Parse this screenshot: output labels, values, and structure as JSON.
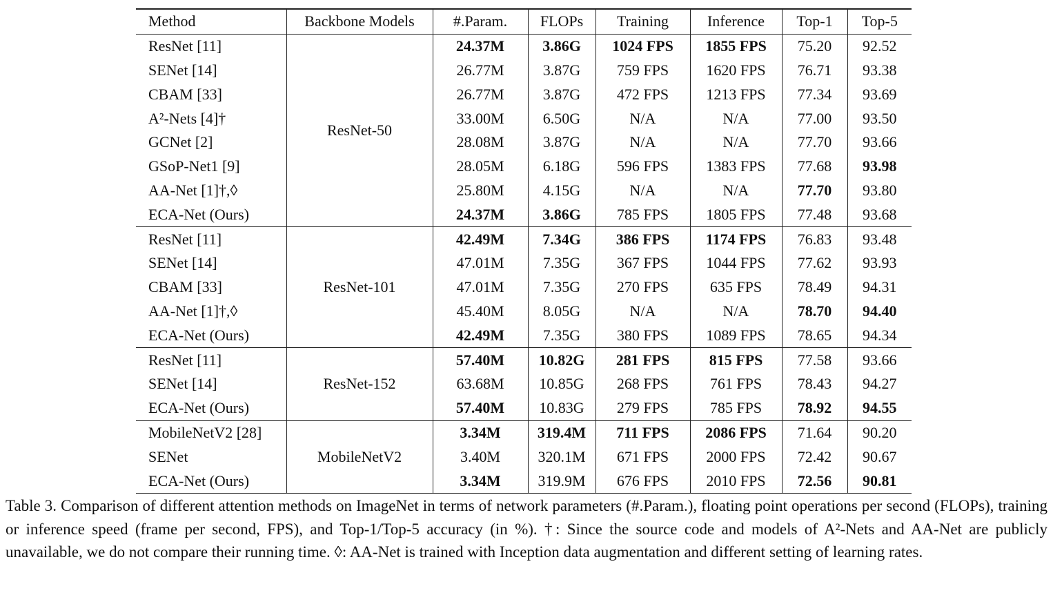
{
  "table": {
    "header": [
      "Method",
      "Backbone Models",
      "#.Param.",
      "FLOPs",
      "Training",
      "Inference",
      "Top-1",
      "Top-5"
    ],
    "groups": [
      {
        "backbone": "ResNet-50",
        "rows": [
          [
            "ResNet [11]",
            {
              "text": "24.37M",
              "bold": true
            },
            {
              "text": "3.86G",
              "bold": true
            },
            {
              "text": "1024 FPS",
              "bold": true
            },
            {
              "text": "1855 FPS",
              "bold": true
            },
            "75.20",
            "92.52"
          ],
          [
            "SENet [14]",
            "26.77M",
            "3.87G",
            "759 FPS",
            "1620 FPS",
            "76.71",
            "93.38"
          ],
          [
            "CBAM [33]",
            "26.77M",
            "3.87G",
            "472 FPS",
            "1213 FPS",
            "77.34",
            "93.69"
          ],
          [
            "A²-Nets [4]†",
            "33.00M",
            "6.50G",
            "N/A",
            "N/A",
            "77.00",
            "93.50"
          ],
          [
            "GCNet [2]",
            "28.08M",
            "3.87G",
            "N/A",
            "N/A",
            "77.70",
            "93.66"
          ],
          [
            "GSoP-Net1 [9]",
            "28.05M",
            "6.18G",
            "596 FPS",
            "1383 FPS",
            "77.68",
            {
              "text": "93.98",
              "bold": true
            }
          ],
          [
            "AA-Net [1]†,◊",
            "25.80M",
            "4.15G",
            "N/A",
            "N/A",
            {
              "text": "77.70",
              "bold": true
            },
            "93.80"
          ],
          [
            "ECA-Net (Ours)",
            {
              "text": "24.37M",
              "bold": true
            },
            {
              "text": "3.86G",
              "bold": true
            },
            "785 FPS",
            "1805 FPS",
            "77.48",
            "93.68"
          ]
        ]
      },
      {
        "backbone": "ResNet-101",
        "rows": [
          [
            "ResNet [11]",
            {
              "text": "42.49M",
              "bold": true
            },
            {
              "text": "7.34G",
              "bold": true
            },
            {
              "text": "386 FPS",
              "bold": true
            },
            {
              "text": "1174 FPS",
              "bold": true
            },
            "76.83",
            "93.48"
          ],
          [
            "SENet [14]",
            "47.01M",
            "7.35G",
            "367 FPS",
            "1044 FPS",
            "77.62",
            "93.93"
          ],
          [
            "CBAM [33]",
            "47.01M",
            "7.35G",
            "270 FPS",
            "635 FPS",
            "78.49",
            "94.31"
          ],
          [
            "AA-Net [1]†,◊",
            "45.40M",
            "8.05G",
            "N/A",
            "N/A",
            {
              "text": "78.70",
              "bold": true
            },
            {
              "text": "94.40",
              "bold": true
            }
          ],
          [
            "ECA-Net (Ours)",
            {
              "text": "42.49M",
              "bold": true
            },
            "7.35G",
            "380 FPS",
            "1089 FPS",
            "78.65",
            "94.34"
          ]
        ]
      },
      {
        "backbone": "ResNet-152",
        "rows": [
          [
            "ResNet [11]",
            {
              "text": "57.40M",
              "bold": true
            },
            {
              "text": "10.82G",
              "bold": true
            },
            {
              "text": "281 FPS",
              "bold": true
            },
            {
              "text": "815 FPS",
              "bold": true
            },
            "77.58",
            "93.66"
          ],
          [
            "SENet [14]",
            "63.68M",
            "10.85G",
            "268 FPS",
            "761 FPS",
            "78.43",
            "94.27"
          ],
          [
            "ECA-Net (Ours)",
            {
              "text": "57.40M",
              "bold": true
            },
            "10.83G",
            "279 FPS",
            "785 FPS",
            {
              "text": "78.92",
              "bold": true
            },
            {
              "text": "94.55",
              "bold": true
            }
          ]
        ]
      },
      {
        "backbone": "MobileNetV2",
        "rows": [
          [
            "MobileNetV2 [28]",
            {
              "text": "3.34M",
              "bold": true
            },
            {
              "text": "319.4M",
              "bold": true
            },
            {
              "text": "711 FPS",
              "bold": true
            },
            {
              "text": "2086 FPS",
              "bold": true
            },
            "71.64",
            "90.20"
          ],
          [
            "SENet",
            "3.40M",
            "320.1M",
            "671 FPS",
            "2000 FPS",
            "72.42",
            "90.67"
          ],
          [
            "ECA-Net (Ours)",
            {
              "text": "3.34M",
              "bold": true
            },
            "319.9M",
            "676 FPS",
            "2010 FPS",
            {
              "text": "72.56",
              "bold": true
            },
            {
              "text": "90.81",
              "bold": true
            }
          ]
        ]
      }
    ]
  },
  "caption": "Table 3. Comparison of different attention methods on ImageNet in terms of network parameters (#.Param.), floating point operations per second (FLOPs), training or inference speed (frame per second, FPS), and Top-1/Top-5 accuracy (in %). †: Since the source code and models of A²-Nets and AA-Net are publicly unavailable, we do not compare their running time. ◊: AA-Net is trained with Inception data augmentation and different setting of learning rates."
}
